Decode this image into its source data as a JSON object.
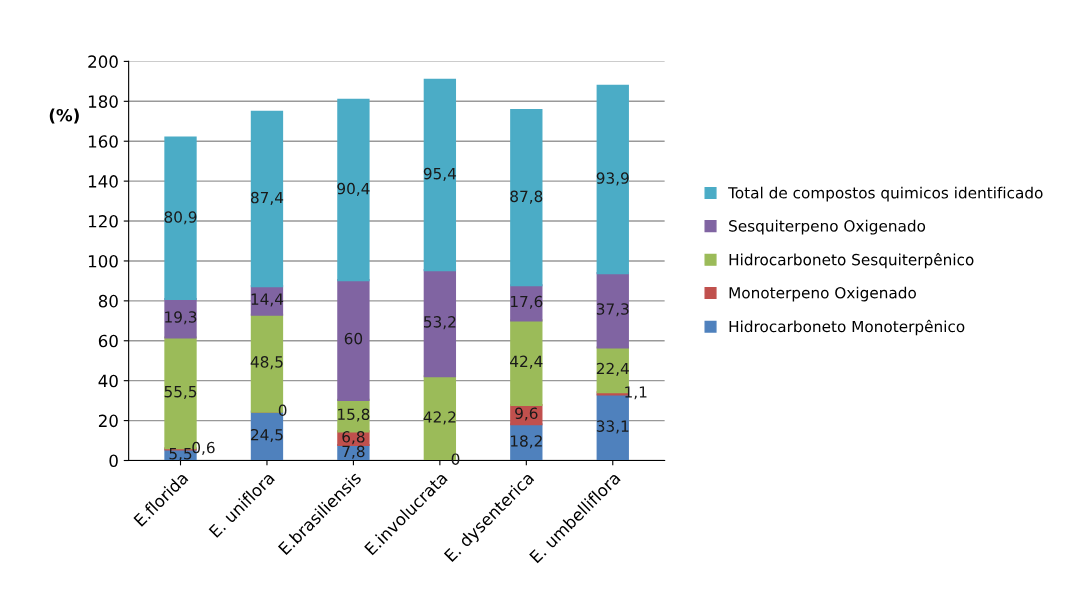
{
  "chart_data": {
    "type": "bar",
    "stacked": true,
    "ylabel": "(%)",
    "categories": [
      "E.florida",
      "E. uniflora",
      "E.brasiliensis",
      "E.involucrata",
      "E. dysenterica",
      "E. umbelliflora"
    ],
    "series": [
      {
        "name": "Hidrocarboneto Monoterpênico",
        "color": "#4f81bd",
        "values": [
          5.5,
          24.5,
          7.8,
          0,
          18.2,
          33.1
        ],
        "value_labels": [
          "5,5",
          "24,5",
          "7,8",
          "0",
          "18,2",
          "33,1"
        ]
      },
      {
        "name": "Monoterpeno Oxigenado",
        "color": "#c0504d",
        "values": [
          0.6,
          0,
          6.8,
          null,
          9.6,
          1.1
        ],
        "value_labels": [
          "0,6",
          "0",
          "6,8",
          null,
          "9,6",
          "1,1"
        ]
      },
      {
        "name": "Hidrocarboneto Sesquiterpênico",
        "color": "#9bbb59",
        "values": [
          55.5,
          48.5,
          15.8,
          42.2,
          42.4,
          22.4
        ],
        "value_labels": [
          "55,5",
          "48,5",
          "15,8",
          "42,2",
          "42,4",
          "22,4"
        ]
      },
      {
        "name": "Sesquiterpeno Oxigenado",
        "color": "#8064a2",
        "values": [
          19.3,
          14.4,
          60,
          53.2,
          17.6,
          37.3
        ],
        "value_labels": [
          "19,3",
          "14,4",
          "60",
          "53,2",
          "17,6",
          "37,3"
        ]
      },
      {
        "name": "Total de compostos quimicos identificado",
        "color": "#4bacc6",
        "values": [
          80.9,
          87.4,
          90.4,
          95.4,
          87.8,
          93.9
        ],
        "value_labels": [
          "80,9",
          "87,4",
          "90,4",
          "95,4",
          "87,8",
          "93,9"
        ]
      }
    ],
    "ylim": [
      0,
      200
    ],
    "yticks": [
      0,
      20,
      40,
      60,
      80,
      100,
      120,
      140,
      160,
      180,
      200
    ],
    "grid": "y",
    "legend": "right"
  }
}
